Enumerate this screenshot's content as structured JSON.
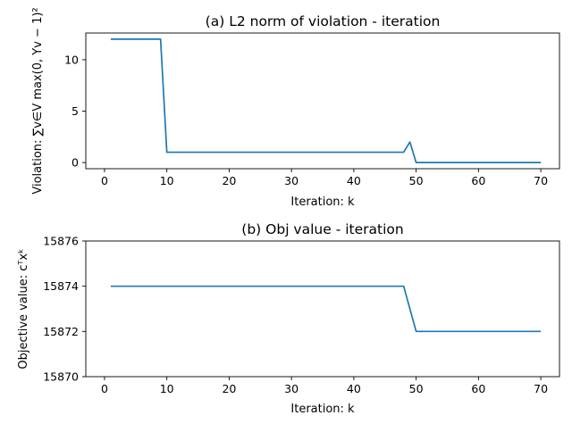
{
  "chart_data": [
    {
      "type": "line",
      "title": "(a) L2 norm of violation - iteration",
      "xlabel": "Iteration: k",
      "ylabel_text": "Violation: ",
      "ylabel_math": "∑v∈V max(0, Yv − 1)²",
      "xlim": [
        -3,
        73
      ],
      "ylim": [
        -0.6,
        12.6
      ],
      "x_ticks": [
        0,
        10,
        20,
        30,
        40,
        50,
        60,
        70
      ],
      "y_ticks": [
        0,
        5,
        10
      ],
      "grid": false,
      "legend": "none",
      "series": [
        {
          "color": "#1f77b4",
          "x": [
            1,
            2,
            3,
            4,
            5,
            6,
            7,
            8,
            9,
            10,
            11,
            12,
            13,
            14,
            15,
            16,
            17,
            18,
            19,
            20,
            21,
            22,
            23,
            24,
            25,
            26,
            27,
            28,
            29,
            30,
            31,
            32,
            33,
            34,
            35,
            36,
            37,
            38,
            39,
            40,
            41,
            42,
            43,
            44,
            45,
            46,
            47,
            48,
            49,
            50,
            51,
            52,
            53,
            54,
            55,
            56,
            57,
            58,
            59,
            60,
            61,
            62,
            63,
            64,
            65,
            66,
            67,
            68,
            69,
            70
          ],
          "y": [
            12,
            12,
            12,
            12,
            12,
            12,
            12,
            12,
            12,
            1,
            1,
            1,
            1,
            1,
            1,
            1,
            1,
            1,
            1,
            1,
            1,
            1,
            1,
            1,
            1,
            1,
            1,
            1,
            1,
            1,
            1,
            1,
            1,
            1,
            1,
            1,
            1,
            1,
            1,
            1,
            1,
            1,
            1,
            1,
            1,
            1,
            1,
            1,
            2,
            0,
            0,
            0,
            0,
            0,
            0,
            0,
            0,
            0,
            0,
            0,
            0,
            0,
            0,
            0,
            0,
            0,
            0,
            0,
            0,
            0
          ]
        }
      ]
    },
    {
      "type": "line",
      "title": "(b) Obj value - iteration",
      "xlabel": "Iteration: k",
      "ylabel_text": "Objective value: ",
      "ylabel_math": "cᵀxᵏ",
      "xlim": [
        -3,
        73
      ],
      "ylim": [
        15870,
        15876
      ],
      "x_ticks": [
        0,
        10,
        20,
        30,
        40,
        50,
        60,
        70
      ],
      "y_ticks": [
        15870,
        15872,
        15874,
        15876
      ],
      "grid": false,
      "legend": "none",
      "series": [
        {
          "color": "#1f77b4",
          "x": [
            1,
            2,
            3,
            4,
            5,
            6,
            7,
            8,
            9,
            10,
            11,
            12,
            13,
            14,
            15,
            16,
            17,
            18,
            19,
            20,
            21,
            22,
            23,
            24,
            25,
            26,
            27,
            28,
            29,
            30,
            31,
            32,
            33,
            34,
            35,
            36,
            37,
            38,
            39,
            40,
            41,
            42,
            43,
            44,
            45,
            46,
            47,
            48,
            49,
            50,
            51,
            52,
            53,
            54,
            55,
            56,
            57,
            58,
            59,
            60,
            61,
            62,
            63,
            64,
            65,
            66,
            67,
            68,
            69,
            70
          ],
          "y": [
            15874,
            15874,
            15874,
            15874,
            15874,
            15874,
            15874,
            15874,
            15874,
            15874,
            15874,
            15874,
            15874,
            15874,
            15874,
            15874,
            15874,
            15874,
            15874,
            15874,
            15874,
            15874,
            15874,
            15874,
            15874,
            15874,
            15874,
            15874,
            15874,
            15874,
            15874,
            15874,
            15874,
            15874,
            15874,
            15874,
            15874,
            15874,
            15874,
            15874,
            15874,
            15874,
            15874,
            15874,
            15874,
            15874,
            15874,
            15874,
            15873,
            15872,
            15872,
            15872,
            15872,
            15872,
            15872,
            15872,
            15872,
            15872,
            15872,
            15872,
            15872,
            15872,
            15872,
            15872,
            15872,
            15872,
            15872,
            15872,
            15872,
            15872
          ]
        }
      ]
    }
  ]
}
